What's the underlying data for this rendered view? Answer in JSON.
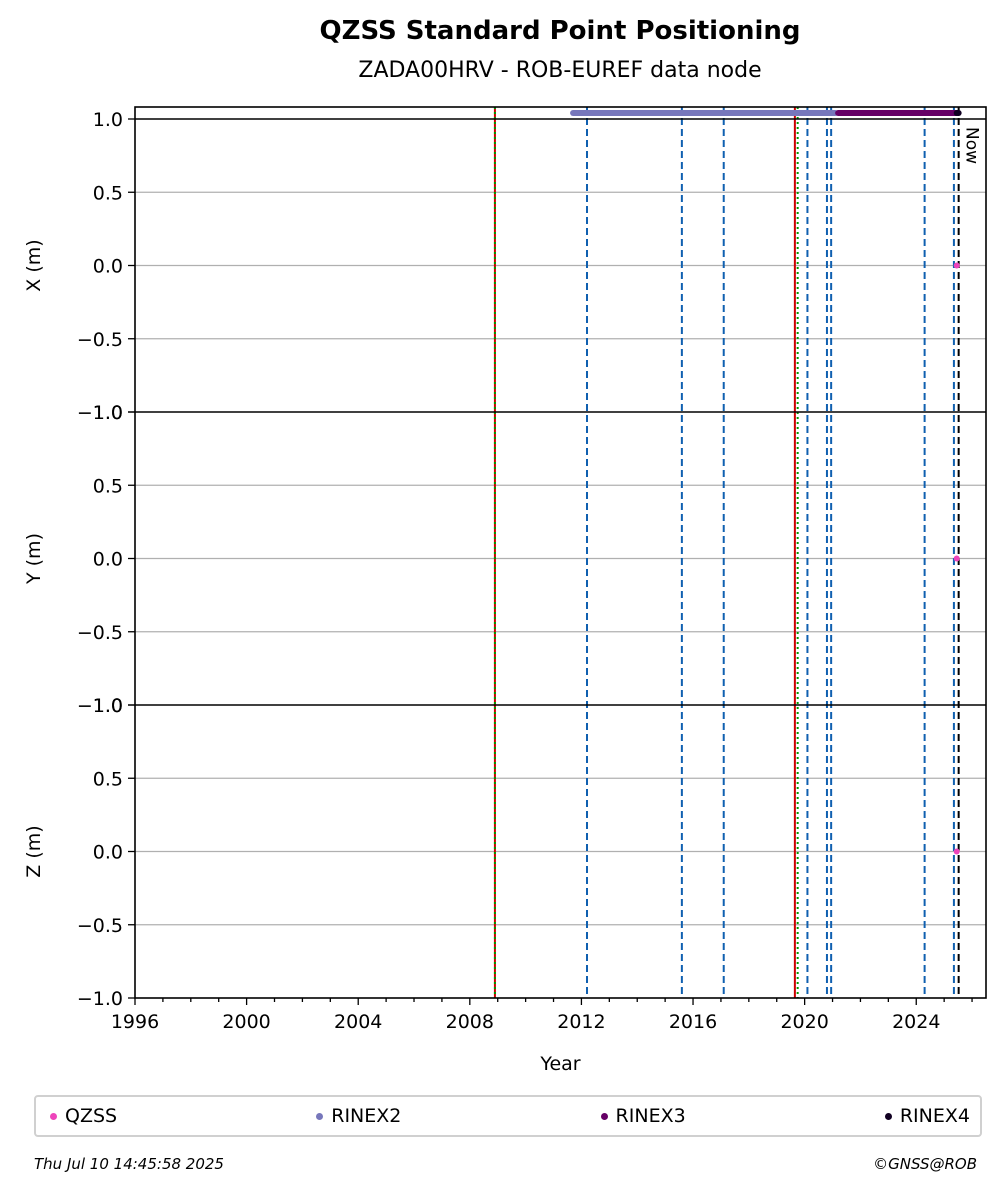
{
  "chart_data": {
    "type": "scatter",
    "title": "QZSS Standard Point Positioning",
    "subtitle": "ZADA00HRV - ROB-EUREF data node",
    "xlabel": "Year",
    "xlim": [
      1996,
      2026.5
    ],
    "x_ticks": [
      1996,
      2000,
      2004,
      2008,
      2012,
      2016,
      2020,
      2024
    ],
    "grid": "horizontal",
    "legend_position": "bottom",
    "panels": [
      {
        "ylabel": "X (m)",
        "ylim": [
          -1.0,
          1.0
        ],
        "ticks": [
          -1.0,
          -0.5,
          0.0,
          0.5,
          1.0
        ],
        "tick_labels": [
          "−1.0",
          "−0.5",
          "0.0",
          "0.5",
          "1.0"
        ]
      },
      {
        "ylabel": "Y (m)",
        "ylim": [
          -1.0,
          1.0
        ],
        "ticks": [
          -1.0,
          -0.5,
          0.0,
          0.5,
          1.0
        ],
        "tick_labels": [
          "−1.0",
          "−0.5",
          "0.0",
          "0.5",
          "1.0"
        ]
      },
      {
        "ylabel": "Z (m)",
        "ylim": [
          -1.0,
          1.0
        ],
        "ticks": [
          -1.0,
          -0.5,
          0.0,
          0.5,
          1.0
        ],
        "tick_labels": [
          "−1.0",
          "−0.5",
          "0.0",
          "0.5",
          "1.0"
        ]
      }
    ],
    "series": [
      {
        "name": "QZSS",
        "color": "#ee44bb",
        "points": [
          {
            "x": 2025.45,
            "y_x": 0.0,
            "y_y": 0.0,
            "y_z": 0.0
          }
        ]
      },
      {
        "name": "RINEX2",
        "color": "#7777bb",
        "availability_range": [
          2011.7,
          2021.1
        ]
      },
      {
        "name": "RINEX3",
        "color": "#660066",
        "availability_range": [
          2021.2,
          2025.5
        ]
      },
      {
        "name": "RINEX4",
        "color": "#110022",
        "availability_range": [
          2025.45,
          2025.52
        ]
      }
    ],
    "event_lines": [
      {
        "x": 2008.9,
        "color": "#cc0000",
        "style": "solid"
      },
      {
        "x": 2008.9,
        "color": "#009900",
        "style": "dotted"
      },
      {
        "x": 2012.2,
        "color": "#1060b0",
        "style": "dashed"
      },
      {
        "x": 2015.6,
        "color": "#1060b0",
        "style": "dashed"
      },
      {
        "x": 2017.1,
        "color": "#1060b0",
        "style": "dashed"
      },
      {
        "x": 2019.65,
        "color": "#cc0000",
        "style": "solid"
      },
      {
        "x": 2019.75,
        "color": "#009900",
        "style": "dotted"
      },
      {
        "x": 2020.1,
        "color": "#1060b0",
        "style": "dashed"
      },
      {
        "x": 2020.8,
        "color": "#1060b0",
        "style": "dashed"
      },
      {
        "x": 2020.95,
        "color": "#1060b0",
        "style": "dashed"
      },
      {
        "x": 2024.3,
        "color": "#1060b0",
        "style": "dashed"
      },
      {
        "x": 2025.35,
        "color": "#1060b0",
        "style": "dashed"
      },
      {
        "x": 2025.52,
        "color": "#000000",
        "style": "dashed"
      }
    ],
    "now_label": "Now"
  },
  "footer": {
    "timestamp": "Thu Jul 10 14:45:58 2025",
    "copyright": "©GNSS@ROB"
  }
}
